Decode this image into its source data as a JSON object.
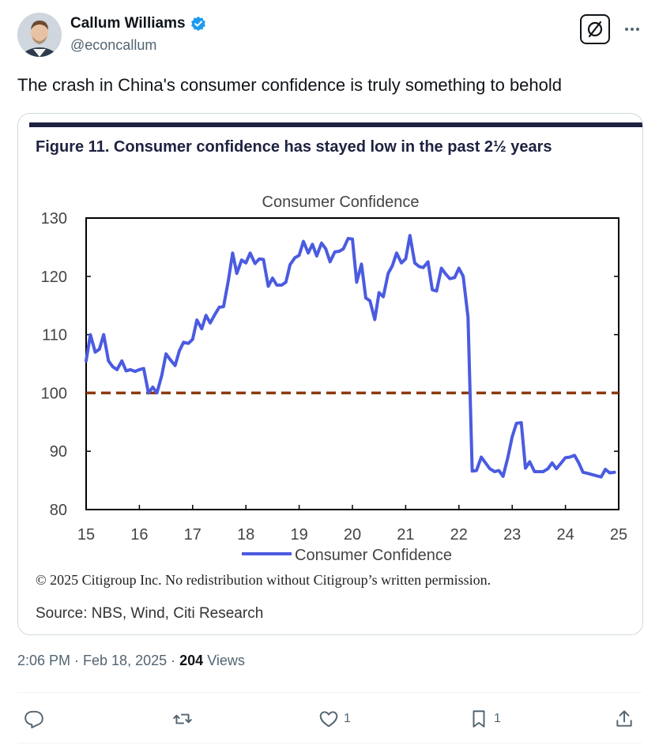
{
  "author": {
    "name": "Callum Williams",
    "handle": "@econcallum",
    "verified": true
  },
  "tweet": {
    "text": "The crash in China's consumer confidence is truly something to behold"
  },
  "figure": {
    "heading": "Figure 11. Consumer confidence has stayed low in the past 2½ years",
    "copyright": "© 2025 Citigroup Inc. No redistribution without Citigroup’s written permission.",
    "source": "Source: NBS, Wind, Citi Research"
  },
  "chart_data": {
    "type": "line",
    "title": "Consumer Confidence",
    "xlabel": "",
    "ylabel": "",
    "xlim": [
      15,
      25
    ],
    "ylim": [
      80,
      130
    ],
    "x_ticks": [
      "15",
      "16",
      "17",
      "18",
      "19",
      "20",
      "21",
      "22",
      "23",
      "24",
      "25"
    ],
    "y_ticks": [
      "80",
      "90",
      "100",
      "110",
      "120",
      "130"
    ],
    "reference_line": {
      "y": 100,
      "style": "dashed",
      "color": "#8B3A0E"
    },
    "legend": "bottom-center",
    "series": [
      {
        "name": "Consumer Confidence",
        "color": "#4B5BE0",
        "x": [
          15.0,
          15.08,
          15.17,
          15.25,
          15.33,
          15.42,
          15.5,
          15.58,
          15.67,
          15.75,
          15.83,
          15.92,
          16.0,
          16.08,
          16.17,
          16.25,
          16.33,
          16.42,
          16.5,
          16.58,
          16.67,
          16.75,
          16.83,
          16.92,
          17.0,
          17.08,
          17.17,
          17.25,
          17.33,
          17.42,
          17.5,
          17.58,
          17.67,
          17.75,
          17.83,
          17.92,
          18.0,
          18.08,
          18.17,
          18.25,
          18.33,
          18.42,
          18.5,
          18.58,
          18.67,
          18.75,
          18.83,
          18.92,
          19.0,
          19.08,
          19.17,
          19.25,
          19.33,
          19.42,
          19.5,
          19.58,
          19.67,
          19.75,
          19.83,
          19.92,
          20.0,
          20.08,
          20.17,
          20.25,
          20.33,
          20.42,
          20.5,
          20.58,
          20.67,
          20.75,
          20.83,
          20.92,
          21.0,
          21.08,
          21.17,
          21.25,
          21.33,
          21.42,
          21.5,
          21.58,
          21.67,
          21.75,
          21.83,
          21.92,
          22.0,
          22.08,
          22.17,
          22.25,
          22.33,
          22.42,
          22.5,
          22.58,
          22.67,
          22.75,
          22.83,
          22.92,
          23.0,
          23.08,
          23.17,
          23.25,
          23.33,
          23.42,
          23.5,
          23.58,
          23.67,
          23.75,
          23.83,
          23.92,
          24.0,
          24.08,
          24.17,
          24.25,
          24.33,
          24.42,
          24.5,
          24.58,
          24.67,
          24.75,
          24.83,
          24.92
        ],
        "values": [
          105.5,
          110,
          107,
          107.5,
          110,
          105.5,
          104.5,
          104,
          105.5,
          103.8,
          104,
          103.7,
          104,
          104.2,
          100,
          101,
          100,
          103,
          106.7,
          105.7,
          104.7,
          107.2,
          108.7,
          108.5,
          109.2,
          112.5,
          111,
          113.3,
          112,
          113.5,
          114.7,
          114.8,
          119.3,
          124,
          120.5,
          122.8,
          122.3,
          124,
          122.2,
          123,
          122.9,
          118.3,
          119.7,
          118.5,
          118.5,
          119,
          122,
          123.2,
          123.6,
          126,
          124,
          125.5,
          123.5,
          125.7,
          124.7,
          122.5,
          124.2,
          124.3,
          124.7,
          126.5,
          126.4,
          119,
          122.1,
          116.3,
          115.8,
          112.6,
          117.2,
          116.5,
          120.5,
          121.8,
          124,
          122.3,
          123,
          127,
          122.3,
          121.7,
          121.5,
          122.5,
          117.7,
          117.5,
          121.4,
          120.4,
          119.6,
          119.8,
          121.4,
          120,
          113,
          86.6,
          86.7,
          89,
          88,
          87,
          86.5,
          86.7,
          85.7,
          89,
          92.5,
          94.8,
          94.9,
          87.1,
          88.2,
          86.5,
          86.5,
          86.5,
          87,
          88,
          87,
          88,
          88.9,
          89,
          89.3,
          88,
          86.4,
          86.2,
          86,
          85.8,
          85.6,
          86.9,
          86.3,
          86.4
        ]
      }
    ]
  },
  "timestamp": {
    "time_date": "2:06 PM · Feb 18, 2025 · ",
    "views_count": "204",
    "views_label": "Views"
  },
  "actions": {
    "replies": "",
    "retweets": "",
    "likes": "1",
    "bookmarks": "1"
  },
  "colors": {
    "text_primary": "#0f1419",
    "text_secondary": "#536471",
    "verified": "#1d9bf0",
    "line": "#4B5BE0",
    "ref_line": "#8B3A0E",
    "figure_bar": "#1e2240"
  }
}
